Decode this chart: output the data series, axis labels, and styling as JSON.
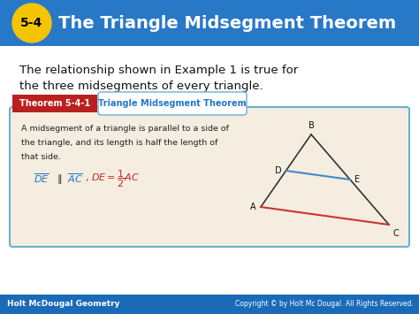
{
  "title_text": "The Triangle Midsegment Theorem",
  "title_number": "5-4",
  "title_bg_color": "#2878c8",
  "title_number_bg": "#f5c400",
  "title_text_color": "#ffffff",
  "title_number_color": "#000000",
  "body_bg": "#ffffff",
  "body_text1": "The relationship shown in Example 1 is true for",
  "body_text2": "the three midsegments of every triangle.",
  "theorem_box_bg": "#f5ede0",
  "theorem_box_border": "#6ab0d8",
  "theorem_header_red_bg": "#bb2020",
  "theorem_header_label": "Theorem 5-4-1",
  "theorem_header_title": "Triangle Midsegment Theorem",
  "theorem_header_title_color": "#2277cc",
  "theorem_body_text1": "A midsegment of a triangle is parallel to a side of",
  "theorem_body_text2": "the triangle, and its length is half the length of",
  "theorem_body_text3": "that side.",
  "theorem_formula_color": "#cc2222",
  "theorem_formula_blue_color": "#2277cc",
  "footer_bg": "#1a6ab8",
  "footer_left": "Holt McDougal Geometry",
  "footer_right": "Copyright © by Holt Mc Dougal. All Rights Reserved.",
  "footer_text_color": "#ffffff",
  "tri_color_main": "#333333",
  "tri_color_de": "#4488cc",
  "tri_color_ac": "#cc3333"
}
